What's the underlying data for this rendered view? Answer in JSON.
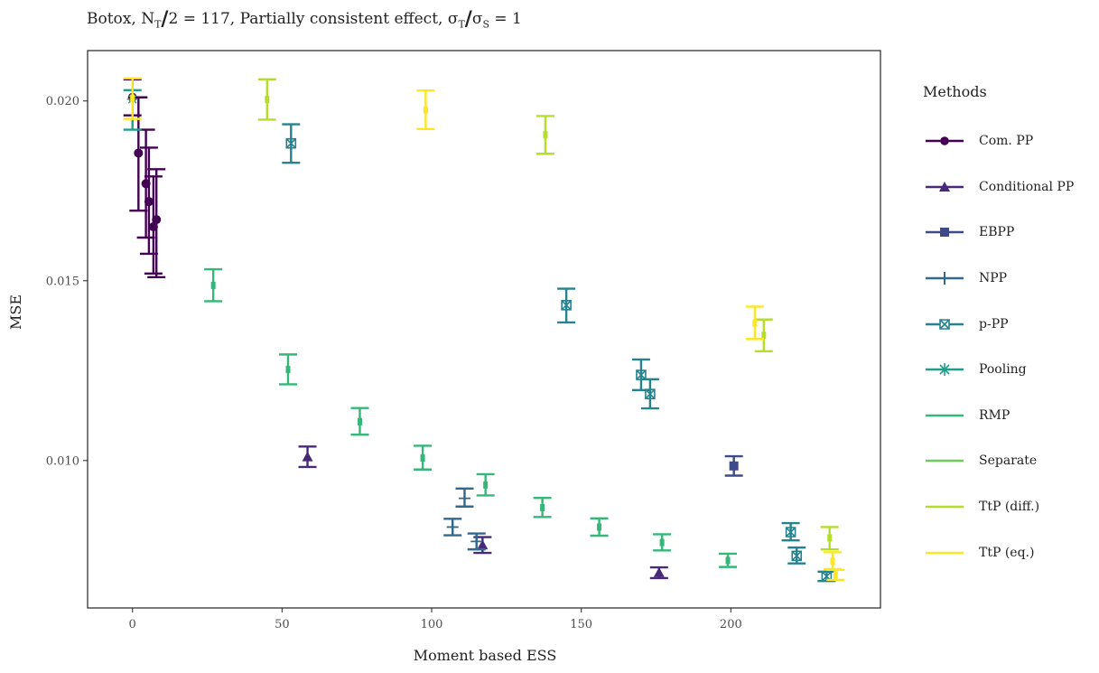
{
  "title": {
    "prefix": "Botox, N",
    "sub1": "T",
    "middle": "2 =  117, Partially consistent effect, σ",
    "sub2": "T",
    "sigma2": "σ",
    "sub3": "S",
    "suffix": " = 1"
  },
  "chart_data": {
    "type": "scatter",
    "xlabel": "Moment based ESS",
    "ylabel": "MSE",
    "xlim": [
      -15,
      250
    ],
    "ylim": [
      0.0059,
      0.0214
    ],
    "xticks": [
      0,
      50,
      100,
      150,
      200
    ],
    "yticks": [
      0.01,
      0.015,
      0.02
    ],
    "ytick_labels": [
      "0.010",
      "0.015",
      "0.020"
    ],
    "grid": false,
    "legend_title": "Methods",
    "legend_position": "right",
    "series": [
      {
        "name": "Com. PP",
        "color": "#440154",
        "marker": "circle",
        "points": [
          {
            "x": 0,
            "y": 0.0201,
            "lo": 0.0196,
            "hi": 0.0206
          },
          {
            "x": 2,
            "y": 0.01855,
            "lo": 0.01695,
            "hi": 0.0201
          },
          {
            "x": 4.5,
            "y": 0.0177,
            "lo": 0.0162,
            "hi": 0.0192
          },
          {
            "x": 5.5,
            "y": 0.0172,
            "lo": 0.01575,
            "hi": 0.0187
          },
          {
            "x": 7.0,
            "y": 0.0165,
            "lo": 0.0152,
            "hi": 0.0179
          },
          {
            "x": 8.0,
            "y": 0.0167,
            "lo": 0.0151,
            "hi": 0.0181
          }
        ]
      },
      {
        "name": "Conditional PP",
        "color": "#482878",
        "marker": "triangle",
        "points": [
          {
            "x": 58.5,
            "y": 0.0101,
            "lo": 0.00982,
            "hi": 0.01039
          },
          {
            "x": 117,
            "y": 0.00765,
            "lo": 0.00743,
            "hi": 0.00787
          },
          {
            "x": 176,
            "y": 0.00688,
            "lo": 0.00673,
            "hi": 0.00703
          }
        ]
      },
      {
        "name": "EBPP",
        "color": "#3E4A89",
        "marker": "square",
        "points": [
          {
            "x": 201,
            "y": 0.00985,
            "lo": 0.00958,
            "hi": 0.01012
          }
        ]
      },
      {
        "name": "NPP",
        "color": "#31688E",
        "marker": "plus",
        "points": [
          {
            "x": 111,
            "y": 0.00895,
            "lo": 0.00872,
            "hi": 0.00922
          },
          {
            "x": 107,
            "y": 0.00815,
            "lo": 0.00792,
            "hi": 0.00838
          },
          {
            "x": 115,
            "y": 0.00775,
            "lo": 0.00753,
            "hi": 0.00797
          }
        ]
      },
      {
        "name": "p-PP",
        "color": "#26828E",
        "marker": "square-x",
        "points": [
          {
            "x": 53,
            "y": 0.01882,
            "lo": 0.01828,
            "hi": 0.01935
          },
          {
            "x": 145,
            "y": 0.01432,
            "lo": 0.01384,
            "hi": 0.01478
          },
          {
            "x": 170,
            "y": 0.01238,
            "lo": 0.01196,
            "hi": 0.01281
          },
          {
            "x": 173,
            "y": 0.01185,
            "lo": 0.01145,
            "hi": 0.01226
          },
          {
            "x": 220,
            "y": 0.00801,
            "lo": 0.00778,
            "hi": 0.00826
          },
          {
            "x": 222,
            "y": 0.00735,
            "lo": 0.00714,
            "hi": 0.00758
          },
          {
            "x": 232,
            "y": 0.00678,
            "lo": 0.00665,
            "hi": 0.00691
          }
        ]
      },
      {
        "name": "Pooling",
        "color": "#1F9E89",
        "marker": "asterisk",
        "points": [
          {
            "x": 0,
            "y": 0.02005,
            "lo": 0.0192,
            "hi": 0.0203
          }
        ]
      },
      {
        "name": "RMP",
        "color": "#35B779",
        "marker": "none",
        "points": [
          {
            "x": 27,
            "y": 0.01487,
            "lo": 0.01443,
            "hi": 0.01532
          },
          {
            "x": 52,
            "y": 0.01253,
            "lo": 0.01212,
            "hi": 0.01295
          },
          {
            "x": 76,
            "y": 0.01108,
            "lo": 0.01072,
            "hi": 0.01146
          },
          {
            "x": 97,
            "y": 0.01007,
            "lo": 0.00975,
            "hi": 0.01041
          },
          {
            "x": 118,
            "y": 0.00932,
            "lo": 0.00903,
            "hi": 0.00962
          },
          {
            "x": 137,
            "y": 0.00869,
            "lo": 0.00843,
            "hi": 0.00896
          },
          {
            "x": 156,
            "y": 0.00815,
            "lo": 0.00791,
            "hi": 0.00839
          },
          {
            "x": 177,
            "y": 0.00772,
            "lo": 0.0075,
            "hi": 0.00795
          },
          {
            "x": 199,
            "y": 0.00722,
            "lo": 0.00704,
            "hi": 0.00741
          }
        ]
      },
      {
        "name": "Separate",
        "color": "#6DCD59",
        "marker": "none",
        "points": []
      },
      {
        "name": "TtP (diff.)",
        "color": "#B4DE2C",
        "marker": "none",
        "points": [
          {
            "x": 45,
            "y": 0.02004,
            "lo": 0.01948,
            "hi": 0.0206
          },
          {
            "x": 138,
            "y": 0.01906,
            "lo": 0.01853,
            "hi": 0.01958
          },
          {
            "x": 211,
            "y": 0.01348,
            "lo": 0.01304,
            "hi": 0.01392
          },
          {
            "x": 233,
            "y": 0.00785,
            "lo": 0.00753,
            "hi": 0.00815
          }
        ]
      },
      {
        "name": "TtP (eq.)",
        "color": "#FDE725",
        "marker": "none",
        "points": [
          {
            "x": 0,
            "y": 0.02008,
            "lo": 0.0195,
            "hi": 0.02063
          },
          {
            "x": 98,
            "y": 0.01975,
            "lo": 0.01922,
            "hi": 0.02029
          },
          {
            "x": 208,
            "y": 0.01382,
            "lo": 0.01338,
            "hi": 0.01428
          },
          {
            "x": 234,
            "y": 0.0072,
            "lo": 0.00698,
            "hi": 0.00745
          },
          {
            "x": 235,
            "y": 0.00682,
            "lo": 0.00668,
            "hi": 0.00696
          }
        ]
      }
    ]
  }
}
